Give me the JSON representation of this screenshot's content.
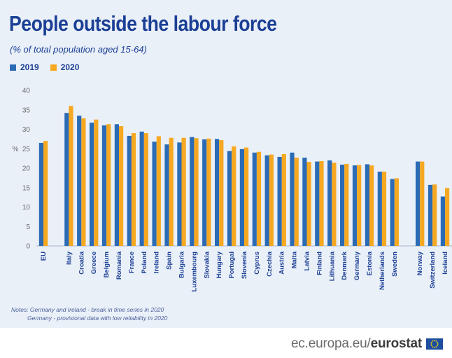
{
  "header": {
    "title": "People outside the labour force",
    "subtitle": "(% of total population aged 15-64)"
  },
  "legend": [
    {
      "label": "2019",
      "color": "#2b6bb6"
    },
    {
      "label": "2020",
      "color": "#f6a821"
    }
  ],
  "notes": {
    "line1": "Notes: Germany and Ireland - break in time series in 2020",
    "line2": "Germany - provisional data with low reliability in 2020"
  },
  "footer": {
    "url_prefix": "ec.europa.eu/",
    "brand": "eurostat",
    "flag_icon": "eu-flag-icon"
  },
  "chart_data": {
    "type": "bar",
    "ylabel": "%",
    "ylim": [
      0,
      40
    ],
    "yticks": [
      0,
      5,
      10,
      15,
      20,
      25,
      30,
      35,
      40
    ],
    "grid": false,
    "legend_position": "top-left",
    "categories": [
      "EU",
      "Italy",
      "Croatia",
      "Greece",
      "Belgium",
      "Romania",
      "France",
      "Poland",
      "Ireland",
      "Spain",
      "Bulgaria",
      "Luxembourg",
      "Slovakia",
      "Hungary",
      "Portugal",
      "Slovenia",
      "Cyprus",
      "Czechia",
      "Austria",
      "Malta",
      "Latvia",
      "Finland",
      "Lithuania",
      "Denmark",
      "Germany",
      "Estonia",
      "Netherlands",
      "Sweden",
      "Norway",
      "Switzerland",
      "Iceland"
    ],
    "gap_after": [
      "EU",
      "Sweden"
    ],
    "series": [
      {
        "name": "2019",
        "color": "#2b6bb6",
        "values": [
          26.5,
          34.2,
          33.5,
          31.7,
          31.0,
          31.3,
          28.3,
          29.4,
          26.8,
          26.1,
          26.6,
          28.0,
          27.4,
          27.5,
          24.4,
          24.9,
          24.0,
          23.3,
          22.9,
          24.0,
          22.7,
          21.7,
          22.0,
          20.9,
          20.7,
          21.0,
          19.1,
          17.2,
          21.7,
          15.7,
          12.7
        ]
      },
      {
        "name": "2020",
        "color": "#f6a821",
        "values": [
          27.0,
          36.0,
          32.8,
          32.5,
          31.3,
          30.8,
          29.0,
          29.0,
          28.2,
          27.8,
          27.8,
          27.7,
          27.6,
          27.2,
          25.6,
          25.3,
          24.2,
          23.5,
          23.6,
          22.7,
          21.6,
          21.8,
          21.4,
          21.1,
          20.8,
          20.7,
          19.1,
          17.4,
          21.7,
          15.8,
          14.9
        ]
      }
    ]
  }
}
